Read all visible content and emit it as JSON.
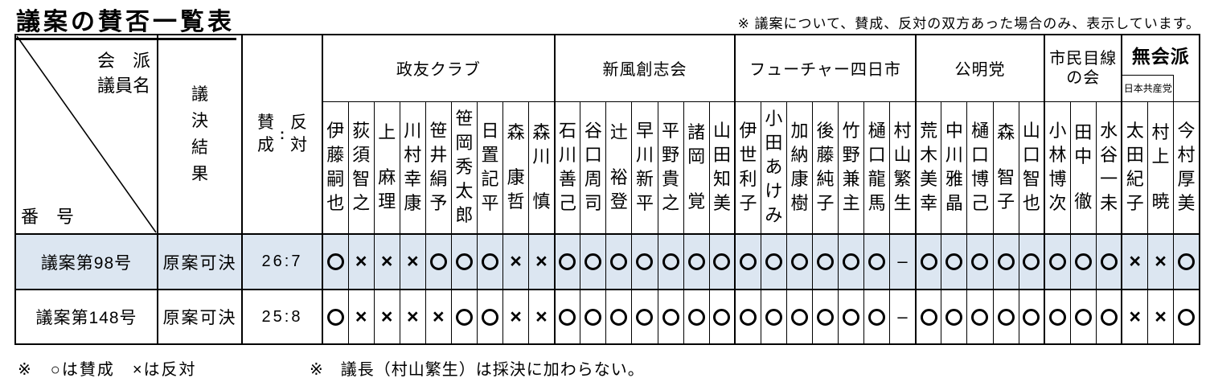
{
  "page": {
    "title": "議案の賛否一覧表",
    "note": "※ 議案について、賛成、反対の双方あった場合のみ、表示しています。",
    "footer_legend": "※　○は賛成　×は反対",
    "footer_chair_note": "※　議長（村山繁生）は採決に加わらない。"
  },
  "table": {
    "corner": {
      "faction_label": "会　派",
      "member_label": "議員名",
      "number_label": "番　号"
    },
    "vote_result_header": "議決結果",
    "tally_header": {
      "yes": "賛成",
      "colon": "：",
      "no": "反対"
    },
    "groups": [
      {
        "name": "政友クラブ",
        "members": [
          "伊藤嗣也",
          "荻須智之",
          "上　麻理",
          "川村幸康",
          "笹井絹予",
          "笹岡秀太郎",
          "日置記平",
          "森　康哲",
          "森川　慎"
        ]
      },
      {
        "name": "新風創志会",
        "members": [
          "石川善己",
          "谷口周司",
          "辻　裕登",
          "早川新平",
          "平野貴之",
          "諸岡　覚",
          "山田知美"
        ]
      },
      {
        "name": "フューチャー四日市",
        "members": [
          "伊世利子",
          "小田あけみ",
          "加納康樹",
          "後藤純子",
          "竹野兼主",
          "樋口龍馬",
          "村山繁生"
        ]
      },
      {
        "name": "公明党",
        "members": [
          "荒木美幸",
          "中川雅晶",
          "樋口博己",
          "森　智子",
          "山口智也"
        ]
      },
      {
        "name": "市民目線の会",
        "name_lines": [
          "市民目線",
          "の会"
        ],
        "members": [
          "小林博次",
          "田中　徹",
          "水谷一未"
        ]
      },
      {
        "name": "無会派",
        "emphasis": true,
        "subgroup": {
          "label": "日本共産党",
          "colspan": 2
        },
        "members": [
          "太田紀子",
          "村上　暁",
          "今村厚美"
        ]
      }
    ],
    "rows": [
      {
        "bill": "議案第98号",
        "result": "原案可決",
        "tally": "26:7",
        "highlight": true,
        "votes": [
          "○",
          "×",
          "×",
          "×",
          "○",
          "○",
          "○",
          "×",
          "×",
          "○",
          "○",
          "○",
          "○",
          "○",
          "○",
          "○",
          "○",
          "○",
          "○",
          "○",
          "○",
          "○",
          "–",
          "○",
          "○",
          "○",
          "○",
          "○",
          "○",
          "○",
          "○",
          "×",
          "×",
          "○"
        ]
      },
      {
        "bill": "議案第148号",
        "result": "原案可決",
        "tally": "25:8",
        "highlight": false,
        "votes": [
          "○",
          "×",
          "×",
          "×",
          "×",
          "○",
          "○",
          "×",
          "×",
          "○",
          "○",
          "○",
          "○",
          "○",
          "○",
          "○",
          "○",
          "○",
          "○",
          "○",
          "○",
          "○",
          "–",
          "○",
          "○",
          "○",
          "○",
          "○",
          "○",
          "○",
          "○",
          "×",
          "×",
          "○"
        ]
      }
    ],
    "colors": {
      "highlight_row": "#dce6f1",
      "border": "#000000"
    }
  }
}
